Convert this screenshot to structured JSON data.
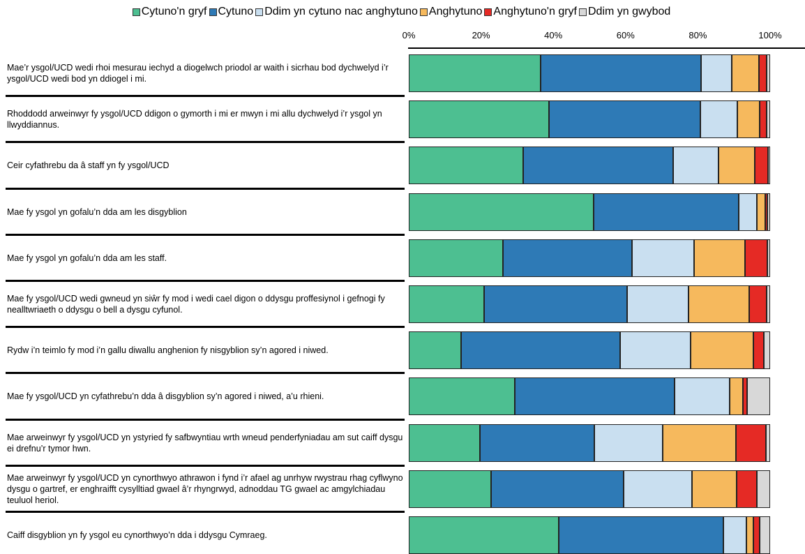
{
  "chart_data": {
    "type": "bar",
    "orientation": "horizontal",
    "stacked": true,
    "xlim": [
      0,
      100
    ],
    "x_ticks": [
      "0%",
      "20%",
      "40%",
      "60%",
      "80%",
      "100%"
    ],
    "legend_position": "top",
    "categories": [
      "Mae’r ysgol/UCD wedi rhoi mesurau iechyd a diogelwch priodol ar waith i sicrhau bod dychwelyd i’r ysgol/UCD wedi bod yn ddiogel i mi.",
      "Rhoddodd arweinwyr fy ysgol/UCD ddigon o gymorth i mi er mwyn i mi allu dychwelyd i’r ysgol yn llwyddiannus.",
      "Ceir cyfathrebu da â staff yn fy ysgol/UCD",
      "Mae fy ysgol yn gofalu’n dda am les disgyblion",
      "Mae fy ysgol yn gofalu’n dda am les staff.",
      "Mae fy ysgol/UCD wedi gwneud yn siŵr fy mod i wedi cael digon o ddysgu proffesiynol i gefnogi fy nealltwriaeth o ddysgu o bell a dysgu cyfunol.",
      "Rydw i’n teimlo fy mod i’n gallu diwallu anghenion fy nisgyblion sy’n agored i niwed.",
      "Mae fy ysgol/UCD yn cyfathrebu’n dda â disgyblion sy’n agored i niwed, a’u rhieni.",
      "Mae arweinwyr fy ysgol/UCD yn ystyried fy safbwyntiau wrth wneud penderfyniadau am sut caiff dysgu ei drefnu’r tymor hwn.",
      "Mae arweinwyr fy ysgol/UCD yn cynorthwyo athrawon i fynd i’r afael ag unrhyw rwystrau rhag cyflwyno dysgu o gartref, er enghraifft cysylltiad gwael â’r rhyngrwyd, adnoddau TG gwael ac amgylchiadau teuluol heriol.",
      "Caiff disgyblion yn fy ysgol eu cynorthwyo’n dda i ddysgu Cymraeg."
    ],
    "series": [
      {
        "name": "Cytuno'n gryf",
        "color": "#4dbf91",
        "values": [
          36.5,
          38.8,
          31.7,
          51.2,
          26.0,
          20.8,
          14.5,
          29.3,
          19.6,
          22.7,
          41.5
        ]
      },
      {
        "name": "Cytuno",
        "color": "#2e7ab6",
        "values": [
          44.4,
          41.9,
          41.5,
          40.1,
          35.7,
          39.7,
          44.0,
          44.2,
          31.7,
          36.7,
          45.5
        ]
      },
      {
        "name": "Ddim yn cytuno nac anghytuno",
        "color": "#c9dff0",
        "values": [
          8.5,
          10.3,
          12.6,
          5.0,
          17.3,
          16.9,
          19.5,
          15.3,
          19.0,
          18.9,
          6.5
        ]
      },
      {
        "name": "Anghytuno",
        "color": "#f6b95d",
        "values": [
          7.5,
          6.1,
          9.9,
          2.3,
          14.0,
          16.9,
          17.4,
          3.7,
          20.2,
          12.4,
          1.9
        ]
      },
      {
        "name": "Anghytuno'n gryf",
        "color": "#e52a25",
        "values": [
          2.1,
          1.9,
          3.8,
          0.6,
          6.3,
          4.7,
          2.9,
          1.2,
          8.3,
          5.7,
          1.7
        ]
      },
      {
        "name": "Ddim yn gwybod",
        "color": "#d8d8d8",
        "values": [
          1.0,
          1.0,
          0.5,
          0.8,
          0.7,
          1.0,
          1.7,
          6.3,
          1.2,
          3.6,
          2.9
        ]
      }
    ]
  }
}
